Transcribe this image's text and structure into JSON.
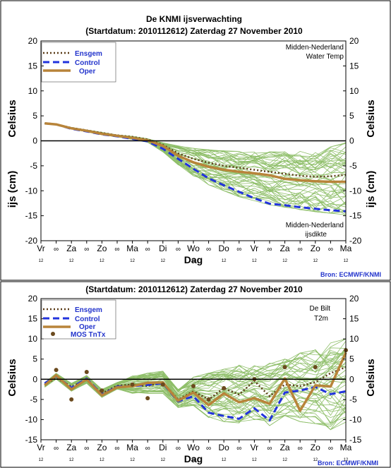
{
  "title": "De KNMI ijsverwachting",
  "subtitle": "(Startdatum: 2010112612)   Zaterdag 27 November 2010",
  "bottom_title": "(Startdatum: 2010112612)   Zaterdag 27 November 2010",
  "source": "Bron: ECMWF/KNMI",
  "colors": {
    "ensgem": "#5a3a16",
    "control": "#2233dd",
    "oper": "#b8843a",
    "members": "#8fbf6a",
    "mos": "#6b4a1e",
    "frame": "#000000",
    "legend_text": "#2233cc"
  },
  "chart_data": [
    {
      "type": "line",
      "panel": "top",
      "ylabel_left": "Celsius",
      "ylabel_left2": "ijs (cm)",
      "ylabel_right": "Celsius",
      "ylabel_right2": "ijs (cm)",
      "xlabel": "Dag",
      "ylim": [
        -20,
        20
      ],
      "yticks": [
        -20,
        -15,
        -10,
        -5,
        0,
        5,
        10,
        15,
        20
      ],
      "xlim": [
        0,
        20
      ],
      "xticks": [
        {
          "x": 0,
          "label": "Vr"
        },
        {
          "x": 1,
          "label": "∞"
        },
        {
          "x": 2,
          "label": "Za"
        },
        {
          "x": 3,
          "label": "∞"
        },
        {
          "x": 4,
          "label": "Zo"
        },
        {
          "x": 5,
          "label": "∞"
        },
        {
          "x": 6,
          "label": "Ma"
        },
        {
          "x": 7,
          "label": "∞"
        },
        {
          "x": 8,
          "label": "Di"
        },
        {
          "x": 9,
          "label": "∞"
        },
        {
          "x": 10,
          "label": "Wo"
        },
        {
          "x": 11,
          "label": "∞"
        },
        {
          "x": 12,
          "label": "Do"
        },
        {
          "x": 13,
          "label": "∞"
        },
        {
          "x": 14,
          "label": "Vr"
        },
        {
          "x": 15,
          "label": "∞"
        },
        {
          "x": 16,
          "label": "Za"
        },
        {
          "x": 17,
          "label": "∞"
        },
        {
          "x": 18,
          "label": "Zo"
        },
        {
          "x": 19,
          "label": "∞"
        },
        {
          "x": 20,
          "label": "Ma"
        }
      ],
      "hour_labels": [
        {
          "x": 0,
          "label": "12"
        },
        {
          "x": 2,
          "label": "12"
        },
        {
          "x": 4,
          "label": "12"
        },
        {
          "x": 6,
          "label": "12"
        },
        {
          "x": 8,
          "label": "12"
        },
        {
          "x": 10,
          "label": "12"
        },
        {
          "x": 12,
          "label": "12"
        },
        {
          "x": 14,
          "label": "12"
        },
        {
          "x": 16,
          "label": "12"
        },
        {
          "x": 18,
          "label": "12"
        },
        {
          "x": 20,
          "label": "12"
        }
      ],
      "annotations": [
        "Midden-Nederland",
        "Water Temp",
        "Midden-Nederland",
        "ijsdikte"
      ],
      "legend": [
        "Ensgem",
        "Control",
        "Oper"
      ],
      "legend_position": "top-left",
      "x": [
        0.25,
        1,
        2,
        3,
        4,
        5,
        6,
        7,
        8,
        9,
        10,
        11,
        12,
        13,
        14,
        15,
        16,
        17,
        18,
        19,
        20
      ],
      "series": [
        {
          "name": "Ensgem",
          "style": "dotted",
          "values": [
            3.5,
            3.3,
            2.6,
            2.1,
            1.6,
            1.1,
            0.8,
            0.3,
            -0.8,
            -2.5,
            -3.6,
            -4.4,
            -5.0,
            -5.4,
            -5.8,
            -6.2,
            -6.6,
            -7.0,
            -7.2,
            -7.1,
            -6.8
          ]
        },
        {
          "name": "Control",
          "style": "dashed",
          "values": [
            3.5,
            3.3,
            2.4,
            1.9,
            1.3,
            0.9,
            0.4,
            -0.1,
            -1.6,
            -3.6,
            -5.6,
            -7.5,
            -8.9,
            -10.2,
            -11.5,
            -12.6,
            -12.9,
            -13.3,
            -13.6,
            -13.9,
            -14.1
          ]
        },
        {
          "name": "Oper",
          "style": "solid",
          "values": [
            3.5,
            3.3,
            2.5,
            2.0,
            1.4,
            1.0,
            0.6,
            0.1,
            -1.0,
            -3.0,
            -4.3,
            -5.2,
            -5.8,
            -6.2,
            -6.5,
            -6.9,
            -7.6,
            -7.9,
            -8.1,
            -8.2,
            -8.2
          ]
        }
      ],
      "members": {
        "count": 50,
        "spread_low": [
          3.5,
          3.3,
          2.4,
          1.8,
          1.2,
          0.8,
          0.3,
          -0.3,
          -2.2,
          -4.8,
          -7.0,
          -8.8,
          -10.0,
          -11.2,
          -12.0,
          -12.8,
          -13.3,
          -13.8,
          -14.2,
          -14.5,
          -14.8
        ],
        "spread_high": [
          3.5,
          3.3,
          2.7,
          2.2,
          1.7,
          1.2,
          0.9,
          0.4,
          -0.4,
          -1.0,
          -1.5,
          -1.8,
          -2.0,
          -2.1,
          -2.2,
          -2.2,
          -2.2,
          -2.1,
          -1.8,
          -1.2,
          -0.3
        ]
      }
    },
    {
      "type": "line",
      "panel": "bottom",
      "ylabel_left": "Celsius",
      "ylabel_right": "Celsius",
      "xlabel": "Dag",
      "ylim": [
        -15,
        20
      ],
      "yticks": [
        -15,
        -10,
        -5,
        0,
        5,
        10,
        15,
        20
      ],
      "xlim": [
        0,
        20
      ],
      "xticks": [
        {
          "x": 0,
          "label": "Vr"
        },
        {
          "x": 1,
          "label": "∞"
        },
        {
          "x": 2,
          "label": "Za"
        },
        {
          "x": 3,
          "label": "∞"
        },
        {
          "x": 4,
          "label": "Zo"
        },
        {
          "x": 5,
          "label": "∞"
        },
        {
          "x": 6,
          "label": "Ma"
        },
        {
          "x": 7,
          "label": "∞"
        },
        {
          "x": 8,
          "label": "Di"
        },
        {
          "x": 9,
          "label": "∞"
        },
        {
          "x": 10,
          "label": "Wo"
        },
        {
          "x": 11,
          "label": "∞"
        },
        {
          "x": 12,
          "label": "Do"
        },
        {
          "x": 13,
          "label": "∞"
        },
        {
          "x": 14,
          "label": "Vr"
        },
        {
          "x": 15,
          "label": "∞"
        },
        {
          "x": 16,
          "label": "Za"
        },
        {
          "x": 17,
          "label": "∞"
        },
        {
          "x": 18,
          "label": "Zo"
        },
        {
          "x": 19,
          "label": "∞"
        },
        {
          "x": 20,
          "label": "Ma"
        }
      ],
      "hour_labels": [
        {
          "x": 0,
          "label": "12"
        },
        {
          "x": 2,
          "label": "12"
        },
        {
          "x": 4,
          "label": "12"
        },
        {
          "x": 6,
          "label": "12"
        },
        {
          "x": 8,
          "label": "12"
        },
        {
          "x": 10,
          "label": "12"
        },
        {
          "x": 12,
          "label": "12"
        },
        {
          "x": 14,
          "label": "12"
        },
        {
          "x": 16,
          "label": "12"
        },
        {
          "x": 18,
          "label": "12"
        },
        {
          "x": 20,
          "label": "12"
        }
      ],
      "annotations": [
        "De Bilt",
        "T2m"
      ],
      "legend": [
        "Ensgem",
        "Control",
        "Oper",
        "MOS TnTx"
      ],
      "legend_position": "top-left",
      "x": [
        0.25,
        1,
        2,
        3,
        4,
        5,
        6,
        7,
        8,
        9,
        10,
        11,
        12,
        13,
        14,
        15,
        16,
        17,
        18,
        19,
        20
      ],
      "series": [
        {
          "name": "Ensgem",
          "style": "dotted",
          "values": [
            -1.3,
            0.3,
            -1.8,
            -0.2,
            -3.5,
            -1.6,
            -1.3,
            -1.7,
            -0.8,
            -5.0,
            -3.0,
            -5.0,
            -2.2,
            -3.8,
            -0.4,
            -4.2,
            -1.3,
            -1.7,
            -0.7,
            1.5,
            3.0
          ]
        },
        {
          "name": "Control",
          "style": "dashed",
          "values": [
            -1.0,
            0.8,
            -2.1,
            0.2,
            -3.8,
            -1.8,
            -1.7,
            -1.4,
            -1.0,
            -5.5,
            -4.2,
            -8.3,
            -9.1,
            -9.8,
            -7.2,
            -10.2,
            -3.3,
            -2.8,
            -1.9,
            -3.7,
            -3.0
          ]
        },
        {
          "name": "Oper",
          "style": "solid",
          "values": [
            -1.5,
            1.0,
            -2.5,
            0.0,
            -4.0,
            -2.0,
            -1.7,
            -0.9,
            -0.8,
            -5.3,
            -3.3,
            -6.4,
            -3.5,
            -5.7,
            -4.7,
            -6.1,
            0.2,
            -7.8,
            -1.5,
            -1.8,
            6.6
          ]
        },
        {
          "name": "MOS TnTx",
          "style": "dots",
          "values": [
            null,
            2.3,
            -5.0,
            1.8,
            -2.8,
            null,
            -1.3,
            -4.7,
            -1.3,
            null,
            -1.7,
            -5.0,
            -2.2,
            null,
            0.0,
            null,
            3.0,
            null,
            3.0,
            null,
            7.2
          ]
        }
      ],
      "members": {
        "count": 50,
        "spread_low": [
          -2.0,
          0.0,
          -3.0,
          -1.0,
          -4.5,
          -2.6,
          -3.5,
          -3.5,
          -3.5,
          -7.0,
          -6.5,
          -9.5,
          -10.5,
          -11.0,
          -10.0,
          -11.5,
          -9.0,
          -10.5,
          -11.0,
          -12.5,
          -12.5
        ],
        "spread_high": [
          -0.8,
          1.5,
          -1.0,
          1.0,
          -2.5,
          -0.8,
          0.8,
          1.5,
          2.0,
          -2.5,
          0.5,
          1.5,
          2.5,
          3.5,
          3.5,
          4.0,
          5.0,
          6.5,
          7.5,
          9.0,
          10.0
        ]
      }
    }
  ]
}
